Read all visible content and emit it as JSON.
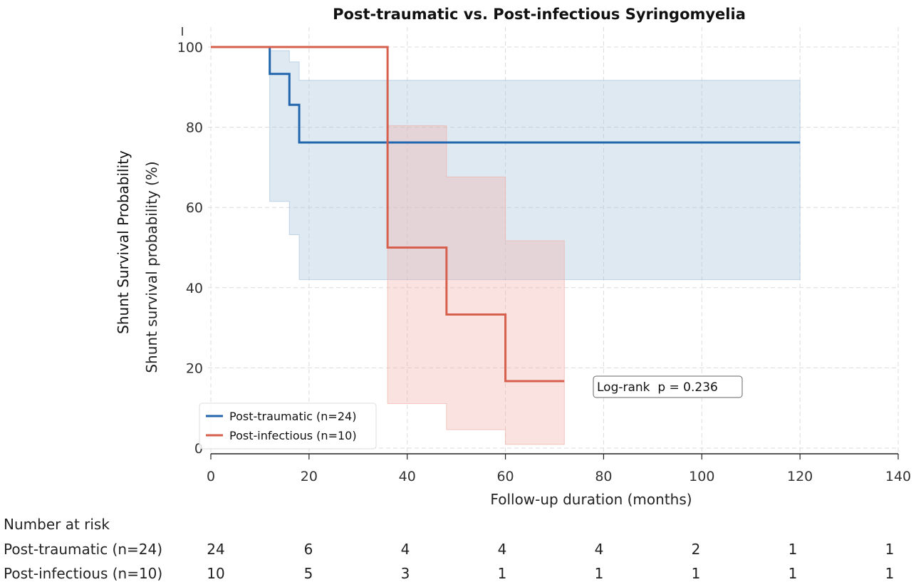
{
  "chart_data": {
    "type": "line",
    "title": "Post-traumatic vs. Post-infectious Syringomyelia",
    "xlabel": "Follow-up duration (months)",
    "ylabel": "Shunt survival probability (%)",
    "ylabel_outer": "Shunt Survival Probability",
    "xlim": [
      0,
      140
    ],
    "ylim": [
      0,
      100
    ],
    "xticks": [
      0,
      20,
      40,
      60,
      80,
      100,
      120,
      140
    ],
    "yticks": [
      0,
      20,
      40,
      60,
      80,
      100
    ],
    "grid": true,
    "legend_position": "bottom-left",
    "series": [
      {
        "name": "Post-traumatic (n=24)",
        "color": "#2166ac",
        "band_color": "#a9c4de",
        "steps": [
          [
            0,
            100
          ],
          [
            12,
            93.3
          ],
          [
            16,
            85.6
          ],
          [
            18,
            76.2
          ],
          [
            120,
            76.2
          ]
        ],
        "ci_lower": [
          [
            0,
            100
          ],
          [
            12,
            61.5
          ],
          [
            16,
            53.2
          ],
          [
            18,
            42.0
          ],
          [
            120,
            42.0
          ]
        ],
        "ci_upper": [
          [
            0,
            100
          ],
          [
            12,
            99.1
          ],
          [
            16,
            96.3
          ],
          [
            18,
            91.7
          ],
          [
            120,
            91.7
          ]
        ]
      },
      {
        "name": "Post-infectious (n=10)",
        "color": "#d6604d",
        "band_color": "#efb3aa",
        "steps": [
          [
            0,
            100
          ],
          [
            36,
            50
          ],
          [
            48,
            33.3
          ],
          [
            60,
            16.7
          ],
          [
            72,
            16.7
          ]
        ],
        "ci_lower": [
          [
            0,
            100
          ],
          [
            36,
            11.1
          ],
          [
            48,
            4.6
          ],
          [
            60,
            0.9
          ],
          [
            72,
            0.9
          ]
        ],
        "ci_upper": [
          [
            0,
            100
          ],
          [
            36,
            80.4
          ],
          [
            48,
            67.6
          ],
          [
            60,
            51.7
          ],
          [
            72,
            51.7
          ]
        ]
      }
    ],
    "annotation": "Log-rank  p = 0.236",
    "risk_table": {
      "header": "Number at risk",
      "times": [
        0,
        20,
        40,
        60,
        80,
        100,
        120,
        140
      ],
      "rows": [
        {
          "label": "Post-traumatic (n=24)",
          "counts": [
            "24",
            "6",
            "4",
            "4",
            "4",
            "2",
            "1",
            "1"
          ]
        },
        {
          "label": "Post-infectious (n=10)",
          "counts": [
            "10",
            "5",
            "3",
            "1",
            "1",
            "1",
            "1",
            "1"
          ]
        }
      ]
    }
  }
}
